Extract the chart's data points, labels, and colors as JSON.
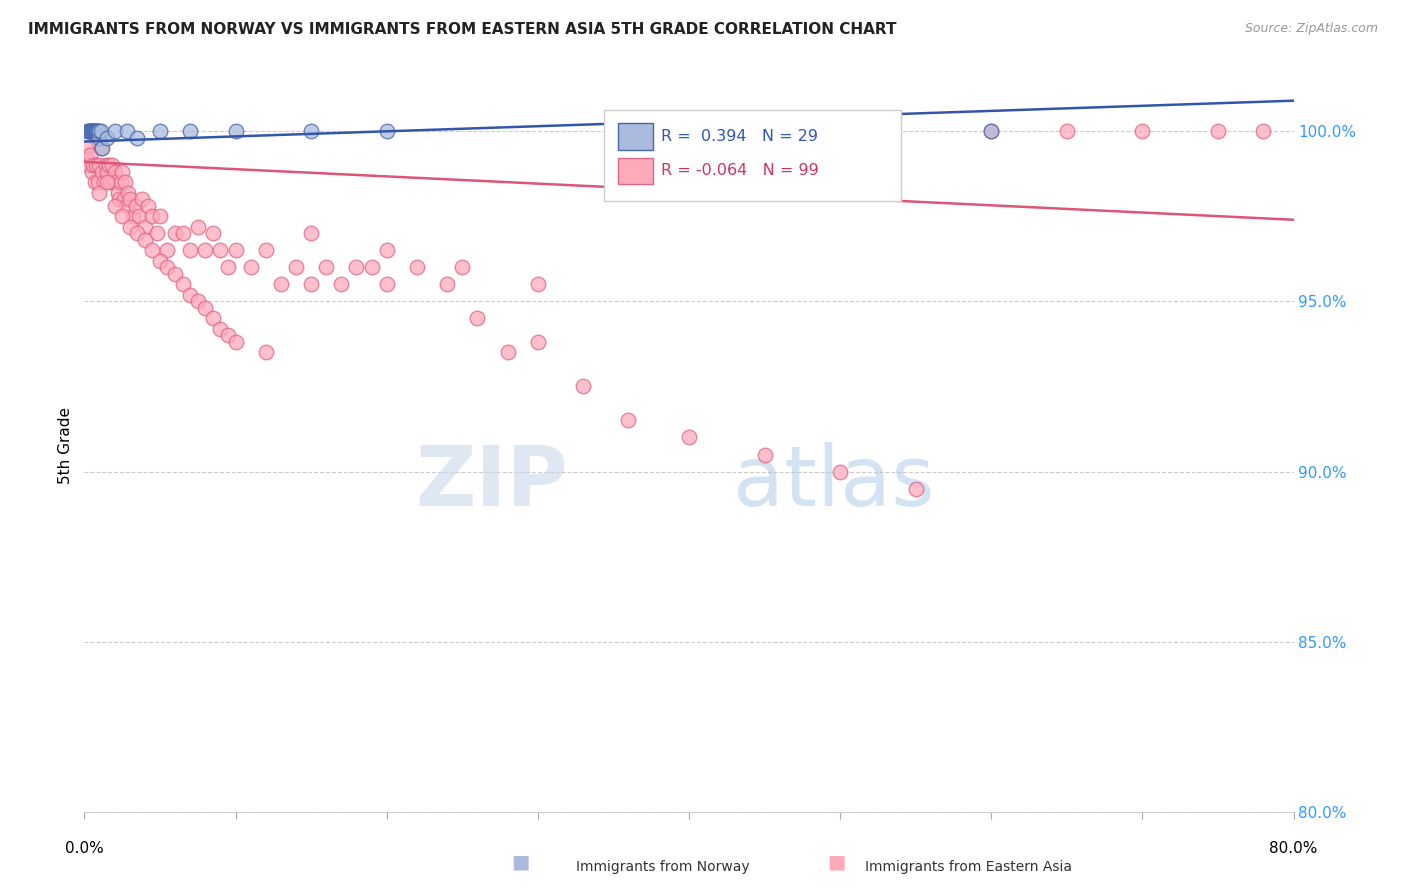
{
  "title": "IMMIGRANTS FROM NORWAY VS IMMIGRANTS FROM EASTERN ASIA 5TH GRADE CORRELATION CHART",
  "source": "Source: ZipAtlas.com",
  "ylabel": "5th Grade",
  "xlim": [
    0.0,
    80.0
  ],
  "ylim": [
    80.0,
    101.5
  ],
  "yticks": [
    80.0,
    85.0,
    90.0,
    95.0,
    100.0
  ],
  "ytick_labels": [
    "80.0%",
    "85.0%",
    "90.0%",
    "95.0%",
    "100.0%"
  ],
  "norway_fill_color": "#aabbdd",
  "norway_edge_color": "#4466aa",
  "ea_fill_color": "#ffaabb",
  "ea_edge_color": "#dd6688",
  "norway_line_color": "#3355aa",
  "ea_line_color": "#dd5577",
  "norway_R": 0.394,
  "norway_N": 29,
  "ea_R": -0.064,
  "ea_N": 99,
  "norway_x": [
    0.2,
    0.3,
    0.35,
    0.4,
    0.45,
    0.5,
    0.55,
    0.6,
    0.65,
    0.7,
    0.75,
    0.8,
    0.85,
    0.9,
    0.95,
    1.0,
    1.1,
    1.2,
    1.5,
    2.0,
    2.8,
    3.5,
    5.0,
    7.0,
    10.0,
    15.0,
    20.0,
    35.0,
    60.0
  ],
  "norway_y": [
    100.0,
    100.0,
    100.0,
    100.0,
    100.0,
    100.0,
    100.0,
    100.0,
    100.0,
    100.0,
    100.0,
    100.0,
    100.0,
    100.0,
    99.8,
    100.0,
    100.0,
    99.5,
    99.8,
    100.0,
    100.0,
    99.8,
    100.0,
    100.0,
    100.0,
    100.0,
    100.0,
    100.0,
    100.0
  ],
  "ea_x": [
    0.1,
    0.2,
    0.3,
    0.4,
    0.5,
    0.6,
    0.7,
    0.8,
    0.9,
    1.0,
    1.1,
    1.2,
    1.3,
    1.4,
    1.5,
    1.6,
    1.7,
    1.8,
    1.9,
    2.0,
    2.1,
    2.2,
    2.3,
    2.4,
    2.5,
    2.6,
    2.7,
    2.8,
    2.9,
    3.0,
    3.2,
    3.4,
    3.6,
    3.8,
    4.0,
    4.2,
    4.5,
    4.8,
    5.0,
    5.5,
    6.0,
    6.5,
    7.0,
    7.5,
    8.0,
    8.5,
    9.0,
    9.5,
    10.0,
    11.0,
    12.0,
    13.0,
    14.0,
    15.0,
    16.0,
    17.0,
    18.0,
    19.0,
    20.0,
    22.0,
    24.0,
    26.0,
    28.0,
    30.0,
    33.0,
    36.0,
    40.0,
    45.0,
    50.0,
    55.0,
    60.0,
    65.0,
    70.0,
    75.0,
    1.0,
    1.5,
    2.0,
    2.5,
    3.0,
    3.5,
    4.0,
    4.5,
    5.0,
    5.5,
    6.0,
    6.5,
    7.0,
    7.5,
    8.0,
    8.5,
    9.0,
    9.5,
    10.0,
    12.0,
    15.0,
    20.0,
    25.0,
    30.0,
    78.0
  ],
  "ea_y": [
    99.5,
    99.2,
    99.0,
    99.3,
    98.8,
    99.0,
    98.5,
    99.0,
    98.5,
    99.0,
    99.5,
    98.8,
    98.5,
    99.0,
    98.8,
    99.0,
    98.5,
    99.0,
    98.5,
    98.8,
    98.5,
    98.2,
    98.0,
    98.5,
    98.8,
    98.0,
    98.5,
    97.8,
    98.2,
    98.0,
    97.5,
    97.8,
    97.5,
    98.0,
    97.2,
    97.8,
    97.5,
    97.0,
    97.5,
    96.5,
    97.0,
    97.0,
    96.5,
    97.2,
    96.5,
    97.0,
    96.5,
    96.0,
    96.5,
    96.0,
    96.5,
    95.5,
    96.0,
    95.5,
    96.0,
    95.5,
    96.0,
    96.0,
    95.5,
    96.0,
    95.5,
    94.5,
    93.5,
    93.8,
    92.5,
    91.5,
    91.0,
    90.5,
    90.0,
    89.5,
    100.0,
    100.0,
    100.0,
    100.0,
    98.2,
    98.5,
    97.8,
    97.5,
    97.2,
    97.0,
    96.8,
    96.5,
    96.2,
    96.0,
    95.8,
    95.5,
    95.2,
    95.0,
    94.8,
    94.5,
    94.2,
    94.0,
    93.8,
    93.5,
    97.0,
    96.5,
    96.0,
    95.5,
    100.0
  ],
  "norway_trend_x": [
    0.0,
    80.0
  ],
  "norway_trend_y": [
    99.7,
    100.9
  ],
  "ea_trend_x": [
    0.0,
    80.0
  ],
  "ea_trend_y": [
    99.1,
    97.4
  ]
}
